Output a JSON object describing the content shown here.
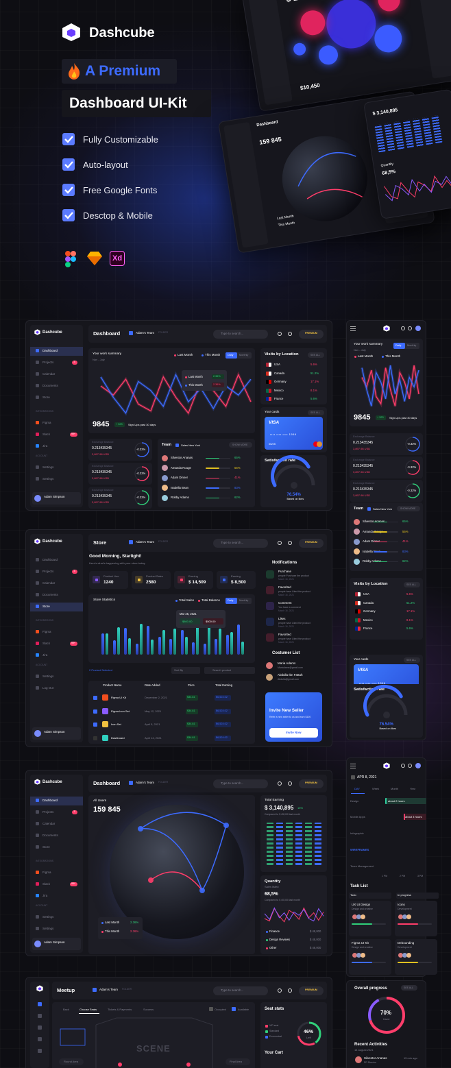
{
  "hero": {
    "brand": "Dashcube",
    "tag": "A Premium",
    "title": "Dashboard UI-Kit",
    "features": [
      "Fully Customizable",
      "Auto-layout",
      "Free Google Fonts",
      "Desctop & Mobile"
    ],
    "xd": "Xd",
    "mock": {
      "balance": "$ 1 594 845",
      "notifications": "Notifications",
      "dashboard": "Dashboard",
      "users": "159 845",
      "earning": "$ 3,140,895",
      "quantity": "Quantity",
      "rate": "68,5%",
      "last": "Last Month",
      "this": "This Month",
      "value": "$10,450"
    }
  },
  "nav": {
    "brand": "Dashcube",
    "items": [
      "Dashboard",
      "Projects",
      "Calendar",
      "Documents",
      "Store"
    ],
    "integrations": "INTEGRATIONS",
    "tools": [
      "Figma",
      "Slack",
      "Jira"
    ],
    "account": "ACCOUNT",
    "settings": [
      "Settings",
      "Settings"
    ],
    "logout": "Log Out",
    "user": "Adam Simpson",
    "badges": [
      "3",
      "99+"
    ]
  },
  "header": {
    "team": "Adam's Team",
    "folder": "FOLDER",
    "search": "Type to search...",
    "premium": "PREMIUM"
  },
  "dashboard": {
    "title": "Dashboard",
    "summary": {
      "title": "Your work summary",
      "period": "Nov - July",
      "legend": [
        "Last Month",
        "This Month"
      ],
      "tabs": [
        "Daily",
        "Monthly"
      ],
      "tooltip": [
        [
          "Last Month",
          "2.36%"
        ],
        [
          "This Month",
          "2.36%"
        ]
      ],
      "total": "9845",
      "delta": "+ 323",
      "note": "Sign-Ups past 30 days"
    },
    "exchange": {
      "label": "Exchange Balance",
      "rows": [
        {
          "value": "0.213435345",
          "usd": "3,897.98 USD",
          "change": "-0.32%"
        },
        {
          "value": "0.213435345",
          "usd": "3,897.98 USD",
          "change": "-0.32%"
        },
        {
          "value": "0.213435345",
          "usd": "3,897.98 USD",
          "change": "-0.32%"
        }
      ]
    },
    "team": {
      "title": "Team",
      "filter": "Sales New York",
      "more": "SHOW MORE",
      "members": [
        {
          "name": "Silvestor Ananas",
          "pct": "65%"
        },
        {
          "name": "Amanda Rouge",
          "pct": "55%"
        },
        {
          "name": "Adam Dinner",
          "pct": "41%"
        },
        {
          "name": "Isabella Bean",
          "pct": "83%"
        },
        {
          "name": "Robby Adams",
          "pct": "62%"
        }
      ]
    },
    "visits": {
      "title": "Visits by Location",
      "see": "SEE ALL",
      "rows": [
        [
          "USA",
          "5.6%"
        ],
        [
          "Canada",
          "51.2%"
        ],
        [
          "Germany",
          "17.1%"
        ],
        [
          "Mexico",
          "8.1%"
        ],
        [
          "France",
          "5.6%"
        ]
      ]
    },
    "cards": {
      "title": "Your cards",
      "see": "SEE ALL",
      "brand": "VISA",
      "number": "•••• •••• •••• 1566",
      "exp": "06/25"
    },
    "satisfaction": {
      "title": "Satisfaction rate",
      "value": "76.54%",
      "note": "Based on likes"
    }
  },
  "store": {
    "title": "Store",
    "greeting": "Good Morning, Starlight!",
    "sub": "Here's what's happening with your store today.",
    "stats": [
      {
        "label": "Product Line",
        "value": "1240"
      },
      {
        "label": "Product Sales",
        "value": "2580"
      },
      {
        "label": "Earning",
        "value": "$ 14,509"
      },
      {
        "label": "Earning",
        "value": "$ 8,500"
      }
    ],
    "chart": {
      "title": "Store Statistics",
      "legend": [
        "Total Sales",
        "Total Balance"
      ],
      "date": "Mar 25, 2021",
      "values": [
        "$800.00",
        "$500.00"
      ]
    },
    "selected": "2 Product Selected",
    "sort": "Sort By",
    "search": "Search product",
    "columns": [
      "Product Name",
      "Date Added",
      "Price",
      "Total Earning"
    ],
    "rows": [
      [
        "Figma UI Kit",
        "December 2, 2021",
        "$34.81",
        "$6,524.02"
      ],
      [
        "Figma Icon Set",
        "May 12, 2021",
        "$34.81",
        "$6,524.02"
      ],
      [
        "Icon Set",
        "April 5, 2021",
        "$34.81",
        "$6,524.02"
      ],
      [
        "Dashboard",
        "April 14, 2021",
        "$34.81",
        "$6,524.02"
      ]
    ],
    "notifications": {
      "title": "Notifications",
      "items": [
        [
          "Purchase",
          "people Purchase the product",
          "March 16, 2021"
        ],
        [
          "Favorited",
          "people have Liked the product",
          "March 16, 2021"
        ],
        [
          "Comment",
          "You have a comment",
          "March 16, 2021"
        ],
        [
          "Likes",
          "people have Liked the product",
          "March 16, 2021"
        ],
        [
          "Favorited",
          "people have Liked the product",
          "March 16, 2021"
        ]
      ]
    },
    "customers": {
      "title": "Costumer List",
      "rows": [
        [
          "Maria Adams",
          "Mariadams@gmail.com"
        ],
        [
          "Abdulla Ibn Fattah",
          "Abdulla@gmail.com"
        ]
      ]
    },
    "invite": {
      "title": "Invite New Seller",
      "text": "Refer a new seller to us and earn $100",
      "button": "Invite Now"
    }
  },
  "globe": {
    "title": "Dashboard",
    "label": "All Users",
    "users": "159 845",
    "legend": [
      [
        "Last Month",
        "2.36%"
      ],
      [
        "This Month",
        "2.36%"
      ]
    ],
    "earning": {
      "title": "Total Earning",
      "value": "$ 3,140,895",
      "pct": "15%",
      "note": "Compared to $ 45,000 last month"
    },
    "quantity": {
      "title": "Quantity",
      "sub": "Sales listed",
      "value": "68,5%",
      "note": "Compared to $ 40,000 last month",
      "list": [
        [
          "Finance",
          "$ 48,000"
        ],
        [
          "Design Reviews",
          "$ 48,000"
        ],
        [
          "Other",
          "$ 48,000"
        ]
      ]
    }
  },
  "calendar": {
    "date": "APR 8, 2021",
    "tabs": [
      "DAY",
      "Week",
      "Month",
      "Year"
    ],
    "rows": [
      "Design",
      "Mobile Apps",
      "Infographic",
      "WIREFRAMES",
      "Team Management"
    ],
    "events": [
      "about 2 hours",
      "about 3 hours"
    ],
    "times": [
      "1 PM",
      "2 PM",
      "3 PM"
    ],
    "tasks": {
      "title": "Task List",
      "columns": [
        "Todo",
        "In progress"
      ],
      "cards": [
        [
          "UX UI Design",
          "Design and creative"
        ],
        [
          "Icons",
          "Development"
        ],
        [
          "Figma UI Kit",
          "Design and creative"
        ],
        [
          "Debounding",
          "Development"
        ]
      ]
    }
  },
  "meetup": {
    "title": "Meetup",
    "steps": [
      "Back",
      "Choose Seats",
      "Tickets & Payments",
      "Success"
    ],
    "status": [
      "Occupied",
      "Available"
    ],
    "scene": "SCENE",
    "areas": [
      "Round Area",
      "Final Area"
    ],
    "stats": {
      "title": "Seat stats",
      "legend": [
        "VIP seat",
        "Standard",
        "Economical"
      ],
      "value": "46%",
      "sub": "Left"
    },
    "cart": "Your Cart"
  },
  "progress": {
    "title": "Overall progress",
    "see": "SEE ALL",
    "value": "70%",
    "sub": "Used",
    "recent": "Recent Activities",
    "date": "14 august 2021",
    "name": "Silvestor Ananas",
    "time": "15 min ago",
    "role": "PR Director"
  }
}
